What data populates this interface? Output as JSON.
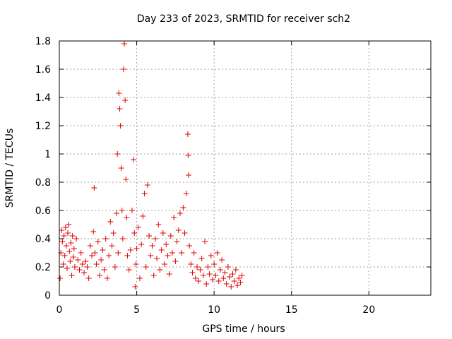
{
  "chart_data": {
    "type": "scatter",
    "title": "Day 233 of 2023, SRMTID for receiver sch2",
    "xlabel": "GPS time / hours",
    "ylabel": "SRMTID / TECUs",
    "xlim": [
      0,
      24
    ],
    "ylim": [
      0,
      1.8
    ],
    "xticks": [
      0,
      5,
      10,
      15,
      20
    ],
    "xtick_labels": [
      "0",
      "5",
      "10",
      "15",
      "20"
    ],
    "yticks": [
      0,
      0.2,
      0.4,
      0.6,
      0.8,
      1,
      1.2,
      1.4,
      1.6,
      1.8
    ],
    "ytick_labels": [
      "0",
      "0.2",
      "0.4",
      "0.6",
      "0.8",
      "1",
      "1.2",
      "1.4",
      "1.6",
      "1.8"
    ],
    "grid": true,
    "marker": "plus",
    "marker_color": "#e00000",
    "series": [
      {
        "name": "sch2",
        "points": [
          [
            0.05,
            0.12
          ],
          [
            0.1,
            0.3
          ],
          [
            0.15,
            0.46
          ],
          [
            0.2,
            0.38
          ],
          [
            0.25,
            0.22
          ],
          [
            0.3,
            0.42
          ],
          [
            0.35,
            0.28
          ],
          [
            0.4,
            0.48
          ],
          [
            0.45,
            0.35
          ],
          [
            0.5,
            0.19
          ],
          [
            0.55,
            0.44
          ],
          [
            0.6,
            0.5
          ],
          [
            0.65,
            0.31
          ],
          [
            0.7,
            0.24
          ],
          [
            0.75,
            0.37
          ],
          [
            0.8,
            0.14
          ],
          [
            0.85,
            0.42
          ],
          [
            0.9,
            0.27
          ],
          [
            0.95,
            0.33
          ],
          [
            1.0,
            0.2
          ],
          [
            1.1,
            0.4
          ],
          [
            1.2,
            0.25
          ],
          [
            1.3,
            0.18
          ],
          [
            1.4,
            0.3
          ],
          [
            1.5,
            0.22
          ],
          [
            1.6,
            0.16
          ],
          [
            1.7,
            0.24
          ],
          [
            1.8,
            0.2
          ],
          [
            1.9,
            0.12
          ],
          [
            2.0,
            0.35
          ],
          [
            2.1,
            0.28
          ],
          [
            2.2,
            0.45
          ],
          [
            2.25,
            0.76
          ],
          [
            2.3,
            0.3
          ],
          [
            2.4,
            0.22
          ],
          [
            2.5,
            0.38
          ],
          [
            2.6,
            0.14
          ],
          [
            2.7,
            0.25
          ],
          [
            2.8,
            0.32
          ],
          [
            2.9,
            0.18
          ],
          [
            3.0,
            0.4
          ],
          [
            3.1,
            0.12
          ],
          [
            3.2,
            0.28
          ],
          [
            3.3,
            0.52
          ],
          [
            3.4,
            0.35
          ],
          [
            3.5,
            0.44
          ],
          [
            3.6,
            0.2
          ],
          [
            3.7,
            0.58
          ],
          [
            3.75,
            1.0
          ],
          [
            3.8,
            0.3
          ],
          [
            3.85,
            1.43
          ],
          [
            3.9,
            1.32
          ],
          [
            3.95,
            1.2
          ],
          [
            4.0,
            0.9
          ],
          [
            4.05,
            0.6
          ],
          [
            4.1,
            0.4
          ],
          [
            4.15,
            1.6
          ],
          [
            4.2,
            1.78
          ],
          [
            4.25,
            1.38
          ],
          [
            4.3,
            0.82
          ],
          [
            4.35,
            0.55
          ],
          [
            4.4,
            0.28
          ],
          [
            4.5,
            0.18
          ],
          [
            4.6,
            0.32
          ],
          [
            4.7,
            0.6
          ],
          [
            4.8,
            0.96
          ],
          [
            4.85,
            0.44
          ],
          [
            4.9,
            0.06
          ],
          [
            4.95,
            0.22
          ],
          [
            5.0,
            0.33
          ],
          [
            5.1,
            0.48
          ],
          [
            5.2,
            0.12
          ],
          [
            5.3,
            0.36
          ],
          [
            5.4,
            0.56
          ],
          [
            5.5,
            0.72
          ],
          [
            5.6,
            0.2
          ],
          [
            5.7,
            0.78
          ],
          [
            5.8,
            0.42
          ],
          [
            5.9,
            0.28
          ],
          [
            6.0,
            0.35
          ],
          [
            6.1,
            0.14
          ],
          [
            6.2,
            0.4
          ],
          [
            6.3,
            0.26
          ],
          [
            6.4,
            0.5
          ],
          [
            6.5,
            0.18
          ],
          [
            6.6,
            0.32
          ],
          [
            6.7,
            0.44
          ],
          [
            6.8,
            0.22
          ],
          [
            6.9,
            0.36
          ],
          [
            7.0,
            0.28
          ],
          [
            7.1,
            0.15
          ],
          [
            7.2,
            0.42
          ],
          [
            7.3,
            0.3
          ],
          [
            7.4,
            0.55
          ],
          [
            7.5,
            0.24
          ],
          [
            7.6,
            0.38
          ],
          [
            7.7,
            0.46
          ],
          [
            7.8,
            0.58
          ],
          [
            7.9,
            0.3
          ],
          [
            8.0,
            0.62
          ],
          [
            8.1,
            0.44
          ],
          [
            8.2,
            0.72
          ],
          [
            8.3,
            1.14
          ],
          [
            8.32,
            0.99
          ],
          [
            8.35,
            0.85
          ],
          [
            8.4,
            0.35
          ],
          [
            8.5,
            0.22
          ],
          [
            8.6,
            0.16
          ],
          [
            8.7,
            0.3
          ],
          [
            8.8,
            0.12
          ],
          [
            8.9,
            0.2
          ],
          [
            9.0,
            0.1
          ],
          [
            9.1,
            0.18
          ],
          [
            9.2,
            0.26
          ],
          [
            9.3,
            0.14
          ],
          [
            9.4,
            0.38
          ],
          [
            9.5,
            0.08
          ],
          [
            9.6,
            0.2
          ],
          [
            9.7,
            0.15
          ],
          [
            9.8,
            0.28
          ],
          [
            9.9,
            0.11
          ],
          [
            10.0,
            0.22
          ],
          [
            10.1,
            0.14
          ],
          [
            10.2,
            0.3
          ],
          [
            10.3,
            0.1
          ],
          [
            10.4,
            0.18
          ],
          [
            10.5,
            0.25
          ],
          [
            10.6,
            0.12
          ],
          [
            10.7,
            0.16
          ],
          [
            10.8,
            0.08
          ],
          [
            10.9,
            0.2
          ],
          [
            11.0,
            0.13
          ],
          [
            11.1,
            0.06
          ],
          [
            11.2,
            0.15
          ],
          [
            11.3,
            0.1
          ],
          [
            11.4,
            0.18
          ],
          [
            11.5,
            0.07
          ],
          [
            11.6,
            0.12
          ],
          [
            11.7,
            0.09
          ],
          [
            11.8,
            0.14
          ]
        ]
      }
    ]
  }
}
